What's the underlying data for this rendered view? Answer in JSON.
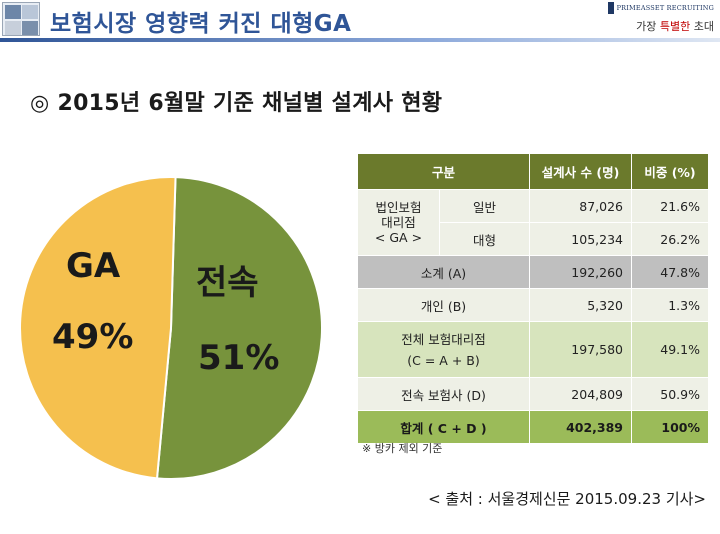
{
  "header": {
    "title": "보험시장 영향력 커진 대형GA",
    "brand_name": "PRIMEASSET RECRUITING",
    "brand_slogan_prefix": "가장 ",
    "brand_slogan_highlight": "특별한",
    "brand_slogan_suffix": " 초대"
  },
  "section_title": "◎ 2015년 6월말 기준 채널별 설계사 현황",
  "chart_data": {
    "type": "pie",
    "slices": [
      {
        "name": "전속",
        "value": 51,
        "label": "51%",
        "color": "#77933c"
      },
      {
        "name": "GA",
        "value": 49,
        "label": "49%",
        "color": "#f5c04e"
      }
    ]
  },
  "table": {
    "headers": {
      "category": "구분",
      "count": "설계사 수 (명)",
      "share": "비중 (%)"
    },
    "group_label_lines": [
      "법인보험",
      "대리점",
      "< GA >"
    ],
    "rows": {
      "general": {
        "label": "일반",
        "count": "87,026",
        "share": "21.6%"
      },
      "large": {
        "label": "대형",
        "count": "105,234",
        "share": "26.2%"
      },
      "subtotal": {
        "label": "소계 (A)",
        "count": "192,260",
        "share": "47.8%"
      },
      "individual": {
        "label": "개인 (B)",
        "count": "5,320",
        "share": "1.3%"
      },
      "all_agency": {
        "label_line1": "전체 보험대리점",
        "label_line2": "(C = A + B)",
        "count": "197,580",
        "share": "49.1%"
      },
      "exclusive": {
        "label": "전속 보험사 (D)",
        "count": "204,809",
        "share": "50.9%"
      },
      "total": {
        "label": "합계 ( C + D )",
        "count": "402,389",
        "share": "100%"
      }
    }
  },
  "note": "※ 방카 제외 기준",
  "source": "< 출처 : 서울경제신문 2015.09.23 기사>",
  "colors": {
    "accent": "#2f5597",
    "table_header": "#6b7a2c",
    "total_row": "#9bbb59"
  }
}
